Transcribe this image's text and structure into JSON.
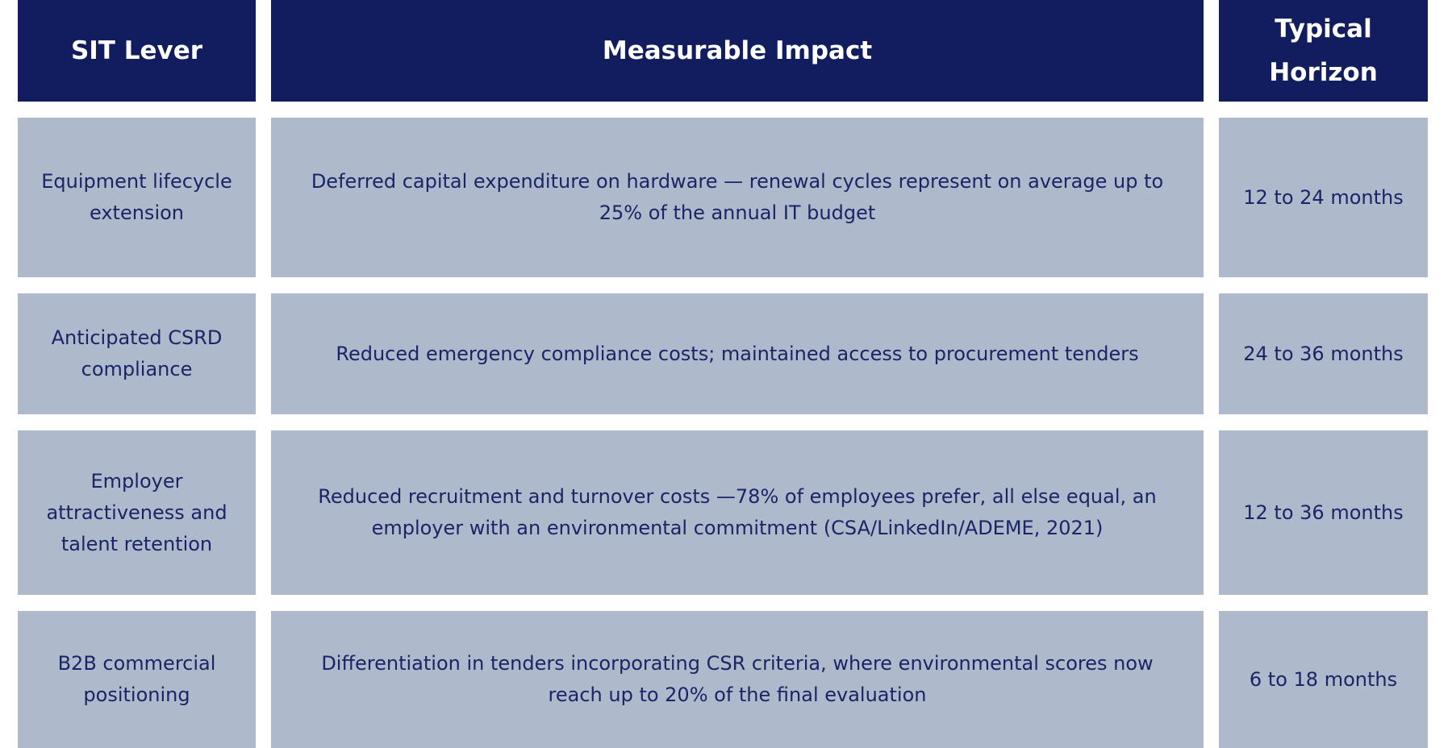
{
  "table": {
    "header": [
      "SIT Lever",
      "Measurable Impact",
      "Typical Horizon"
    ],
    "rows": [
      [
        "Equipment lifecycle extension",
        "Deferred capital expenditure on hardware — renewal cycles represent on average up to 25% of the annual IT budget",
        "12 to 24 months"
      ],
      [
        "Anticipated CSRD compliance",
        "Reduced emergency compliance costs; maintained access to procurement tenders",
        "24 to 36 months"
      ],
      [
        "Employer attractiveness and talent retention",
        "Reduced recruitment and turnover costs —78% of employees prefer, all else equal, an employer with an environmental commitment (CSA/LinkedIn/ADEME, 2021)",
        "12 to 36 months"
      ],
      [
        "B2B commercial positioning",
        "Differentiation in tenders incorporating CSR criteria, where environmental scores now reach up to 20% of the final evaluation",
        "6 to 18 months"
      ]
    ]
  }
}
